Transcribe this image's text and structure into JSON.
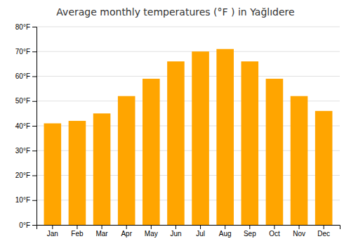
{
  "chart_data": {
    "type": "bar",
    "title": "Average monthly temperatures (°F ) in Yağlıdere",
    "categories": [
      "Jan",
      "Feb",
      "Mar",
      "Apr",
      "May",
      "Jun",
      "Jul",
      "Aug",
      "Sep",
      "Oct",
      "Nov",
      "Dec"
    ],
    "values": [
      41,
      42,
      45,
      52,
      59,
      66,
      70,
      71,
      66,
      59,
      52,
      46
    ],
    "color": "#FFA500",
    "ylim": [
      0,
      80
    ],
    "yticks": [
      {
        "value": 0,
        "label": "0°F"
      },
      {
        "value": 10,
        "label": "10°F"
      },
      {
        "value": 20,
        "label": "20°F"
      },
      {
        "value": 30,
        "label": "30°F"
      },
      {
        "value": 40,
        "label": "40°F"
      },
      {
        "value": 50,
        "label": "50°F"
      },
      {
        "value": 60,
        "label": "60°F"
      },
      {
        "value": 70,
        "label": "70°F"
      },
      {
        "value": 80,
        "label": "80°F"
      }
    ],
    "grid": true
  }
}
